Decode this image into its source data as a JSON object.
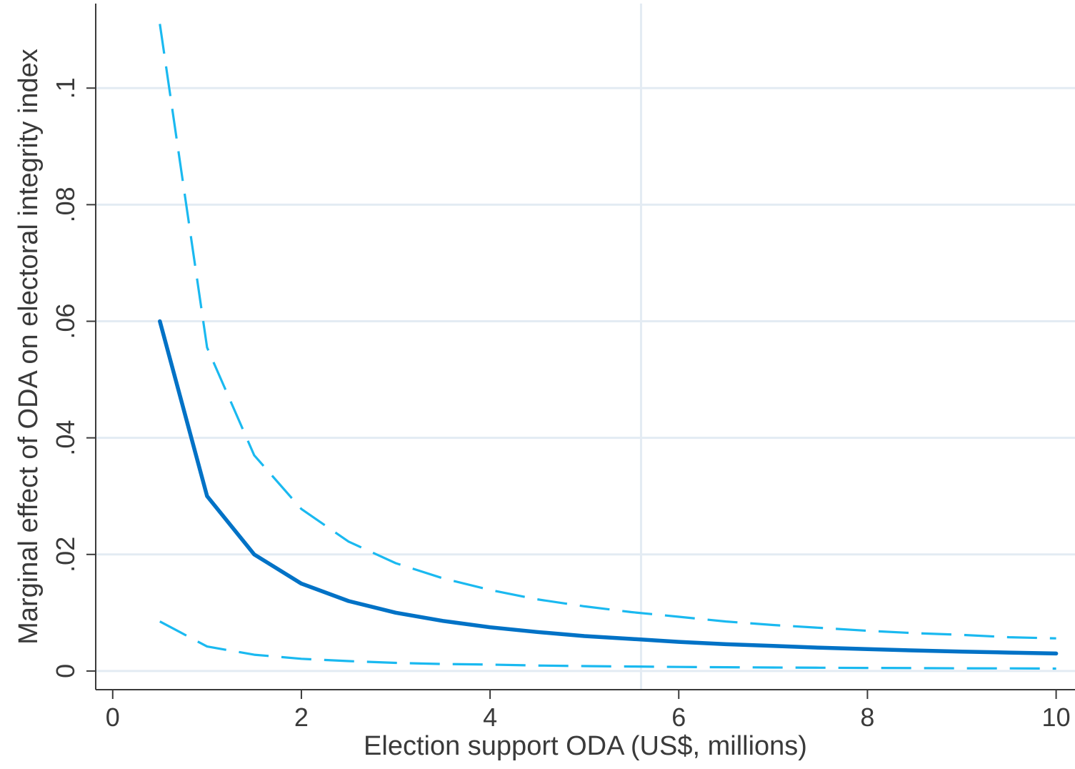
{
  "chart_data": {
    "type": "line",
    "title": "",
    "xlabel": "Election support ODA (US$, millions)",
    "ylabel": "Marginal effect of ODA on electoral integrity index",
    "xlim": [
      -0.18,
      10.2
    ],
    "ylim": [
      -0.0032,
      0.1145
    ],
    "x_ticks": [
      0,
      2,
      4,
      6,
      8,
      10
    ],
    "x_tick_labels": [
      "0",
      "2",
      "4",
      "6",
      "8",
      "10"
    ],
    "y_ticks": [
      0,
      0.02,
      0.04,
      0.06,
      0.08,
      0.1
    ],
    "y_tick_labels": [
      "0",
      ".02",
      ".04",
      ".06",
      ".08",
      ".1"
    ],
    "grid": "horizontal",
    "reference_line_x": 5.6,
    "x": [
      0.5,
      1,
      1.5,
      2,
      2.5,
      3,
      3.5,
      4,
      4.5,
      5,
      5.5,
      6,
      6.5,
      7,
      7.5,
      8,
      8.5,
      9,
      9.5,
      10
    ],
    "series": [
      {
        "role": "estimate",
        "style": "solid",
        "color": "#0072c6",
        "values": [
          0.06,
          0.03,
          0.02,
          0.015,
          0.012,
          0.01,
          0.0086,
          0.0075,
          0.0067,
          0.006,
          0.0055,
          0.005,
          0.0046,
          0.0043,
          0.004,
          0.00375,
          0.00353,
          0.00333,
          0.00316,
          0.003
        ]
      },
      {
        "role": "upper_ci",
        "style": "dashed",
        "color": "#1ab9f0",
        "values": [
          0.111,
          0.0555,
          0.037,
          0.0278,
          0.0222,
          0.0185,
          0.0159,
          0.0139,
          0.0123,
          0.0111,
          0.0101,
          0.0093,
          0.0085,
          0.0079,
          0.0074,
          0.0069,
          0.0065,
          0.0062,
          0.0058,
          0.0056
        ]
      },
      {
        "role": "lower_ci",
        "style": "dashed",
        "color": "#1ab9f0",
        "values": [
          0.0085,
          0.0042,
          0.0028,
          0.0021,
          0.0017,
          0.0014,
          0.0012,
          0.0011,
          0.00095,
          0.00085,
          0.00077,
          0.0007,
          0.00065,
          0.0006,
          0.00057,
          0.00053,
          0.0005,
          0.00047,
          0.00045,
          0.00042
        ]
      }
    ]
  },
  "colors": {
    "grid": "#e3ebf3",
    "axis": "#3a3a3a",
    "reference_line": "#e3ebf3"
  }
}
